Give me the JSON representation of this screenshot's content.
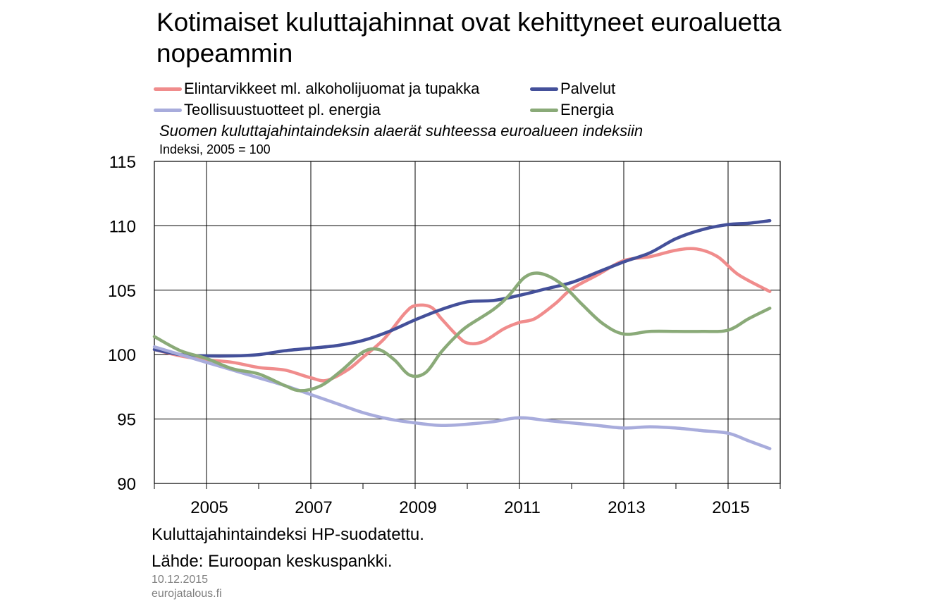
{
  "title": "Kotimaiset kuluttajahinnat ovat kehittyneet euroaluetta nopeammin",
  "subtitle": "Suomen kuluttajahintaindeksin alaerät suhteessa euroalueen indeksiin",
  "unit_label": "Indeksi, 2005 = 100",
  "footnote_1": "Kuluttajahintaindeksi HP-suodatettu.",
  "footnote_2": "Lähde: Euroopan keskuspankki.",
  "date": "10.12.2015",
  "site": "eurojatalous.fi",
  "chart_data": {
    "type": "line",
    "xlim": [
      2004.0,
      2016.0
    ],
    "ylim": [
      90,
      115
    ],
    "y_ticks": [
      90,
      95,
      100,
      105,
      110,
      115
    ],
    "x_ticks": [
      2005,
      2007,
      2009,
      2011,
      2013,
      2015
    ],
    "x_tick_labels": [
      "2005",
      "2007",
      "2009",
      "2011",
      "2013",
      "2015"
    ],
    "grid": true,
    "legend_placement": "top",
    "series": [
      {
        "name": "Elintarvikkeet ml. alkoholijuomat ja tupakka",
        "color": "#f08c8c",
        "points": [
          [
            2004.0,
            100.4
          ],
          [
            2004.5,
            99.9
          ],
          [
            2005.0,
            99.6
          ],
          [
            2005.5,
            99.4
          ],
          [
            2006.0,
            99.0
          ],
          [
            2006.5,
            98.8
          ],
          [
            2007.0,
            98.2
          ],
          [
            2007.3,
            98.0
          ],
          [
            2007.7,
            98.8
          ],
          [
            2008.0,
            99.8
          ],
          [
            2008.4,
            101.2
          ],
          [
            2008.8,
            103.2
          ],
          [
            2009.0,
            103.8
          ],
          [
            2009.3,
            103.7
          ],
          [
            2009.5,
            102.8
          ],
          [
            2009.8,
            101.5
          ],
          [
            2010.0,
            100.9
          ],
          [
            2010.3,
            101.0
          ],
          [
            2010.7,
            102.0
          ],
          [
            2011.0,
            102.5
          ],
          [
            2011.3,
            102.8
          ],
          [
            2011.7,
            104.0
          ],
          [
            2012.0,
            105.1
          ],
          [
            2012.5,
            106.2
          ],
          [
            2013.0,
            107.3
          ],
          [
            2013.5,
            107.6
          ],
          [
            2014.0,
            108.1
          ],
          [
            2014.4,
            108.2
          ],
          [
            2014.8,
            107.6
          ],
          [
            2015.2,
            106.2
          ],
          [
            2015.8,
            104.9
          ]
        ]
      },
      {
        "name": "Palvelut",
        "color": "#44509a",
        "points": [
          [
            2004.0,
            100.4
          ],
          [
            2004.5,
            100.0
          ],
          [
            2005.0,
            99.9
          ],
          [
            2005.5,
            99.9
          ],
          [
            2006.0,
            100.0
          ],
          [
            2006.5,
            100.3
          ],
          [
            2007.0,
            100.5
          ],
          [
            2007.5,
            100.7
          ],
          [
            2008.0,
            101.1
          ],
          [
            2008.5,
            101.8
          ],
          [
            2009.0,
            102.7
          ],
          [
            2009.5,
            103.5
          ],
          [
            2010.0,
            104.1
          ],
          [
            2010.5,
            104.2
          ],
          [
            2011.0,
            104.6
          ],
          [
            2011.5,
            105.1
          ],
          [
            2012.0,
            105.6
          ],
          [
            2012.5,
            106.4
          ],
          [
            2013.0,
            107.2
          ],
          [
            2013.5,
            107.9
          ],
          [
            2014.0,
            109.0
          ],
          [
            2014.5,
            109.7
          ],
          [
            2015.0,
            110.1
          ],
          [
            2015.4,
            110.2
          ],
          [
            2015.8,
            110.4
          ]
        ]
      },
      {
        "name": "Teollisuustuotteet pl. energia",
        "color": "#a8acdc",
        "points": [
          [
            2004.0,
            100.6
          ],
          [
            2004.5,
            100.0
          ],
          [
            2005.0,
            99.4
          ],
          [
            2005.5,
            98.8
          ],
          [
            2006.0,
            98.2
          ],
          [
            2006.5,
            97.6
          ],
          [
            2007.0,
            96.9
          ],
          [
            2007.5,
            96.2
          ],
          [
            2008.0,
            95.5
          ],
          [
            2008.5,
            95.0
          ],
          [
            2009.0,
            94.7
          ],
          [
            2009.5,
            94.5
          ],
          [
            2010.0,
            94.6
          ],
          [
            2010.5,
            94.8
          ],
          [
            2011.0,
            95.1
          ],
          [
            2011.5,
            94.9
          ],
          [
            2012.0,
            94.7
          ],
          [
            2012.5,
            94.5
          ],
          [
            2013.0,
            94.3
          ],
          [
            2013.5,
            94.4
          ],
          [
            2014.0,
            94.3
          ],
          [
            2014.5,
            94.1
          ],
          [
            2015.0,
            93.9
          ],
          [
            2015.4,
            93.3
          ],
          [
            2015.8,
            92.7
          ]
        ]
      },
      {
        "name": "Energia",
        "color": "#8aaa78",
        "points": [
          [
            2004.0,
            101.4
          ],
          [
            2004.5,
            100.3
          ],
          [
            2005.0,
            99.7
          ],
          [
            2005.5,
            98.9
          ],
          [
            2006.0,
            98.5
          ],
          [
            2006.5,
            97.6
          ],
          [
            2006.8,
            97.2
          ],
          [
            2007.2,
            97.6
          ],
          [
            2007.6,
            98.8
          ],
          [
            2008.0,
            100.2
          ],
          [
            2008.3,
            100.4
          ],
          [
            2008.6,
            99.6
          ],
          [
            2008.9,
            98.4
          ],
          [
            2009.2,
            98.6
          ],
          [
            2009.5,
            100.2
          ],
          [
            2009.8,
            101.5
          ],
          [
            2010.0,
            102.2
          ],
          [
            2010.5,
            103.5
          ],
          [
            2010.8,
            104.6
          ],
          [
            2011.1,
            106.0
          ],
          [
            2011.4,
            106.3
          ],
          [
            2011.8,
            105.5
          ],
          [
            2012.2,
            103.9
          ],
          [
            2012.6,
            102.4
          ],
          [
            2013.0,
            101.6
          ],
          [
            2013.5,
            101.8
          ],
          [
            2014.0,
            101.8
          ],
          [
            2014.5,
            101.8
          ],
          [
            2015.0,
            101.9
          ],
          [
            2015.4,
            102.8
          ],
          [
            2015.8,
            103.6
          ]
        ]
      }
    ]
  }
}
